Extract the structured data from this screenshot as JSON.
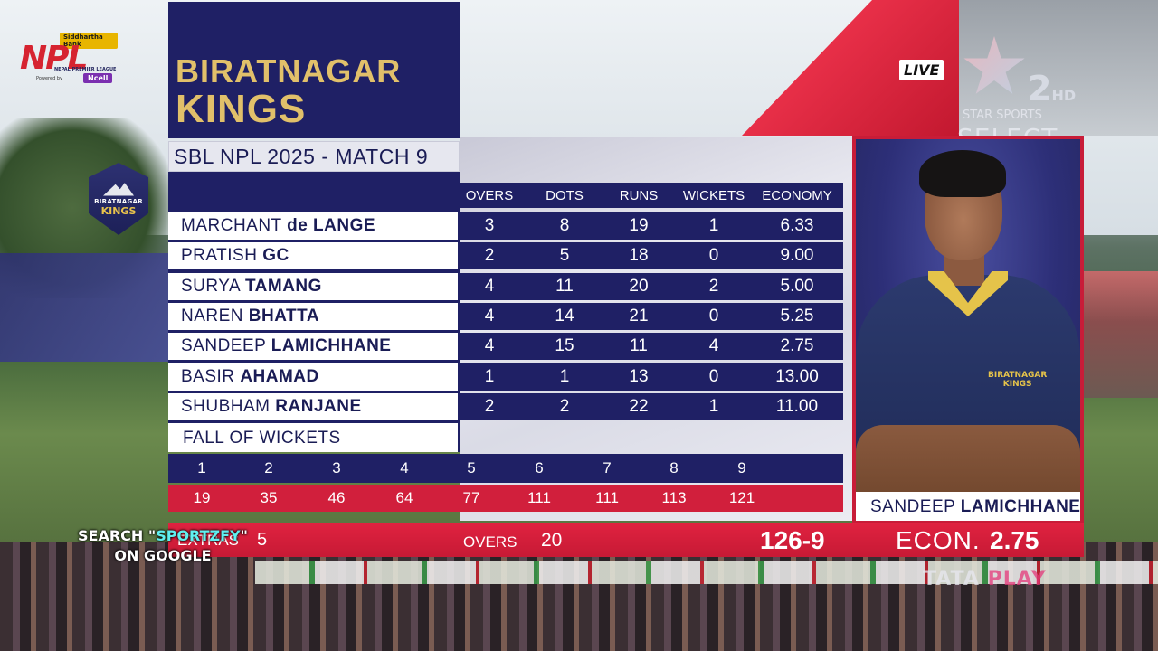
{
  "npl_logo": {
    "sponsor": "Siddhartha Bank",
    "mark": "NPL",
    "subtitle": "NEPAL PREMIER LEAGUE",
    "powered_by": "Powered by",
    "powered_brand": "Ncell"
  },
  "team_shield": {
    "line1": "BIRATNAGAR",
    "line2": "KINGS"
  },
  "broadcaster": {
    "live": "LIVE",
    "channel": "2",
    "hd": "HD",
    "star_sports": "STAR SPORTS",
    "select": "SELECT",
    "tata_play": "TATA",
    "tata_play_2": "PLAY"
  },
  "scorecard": {
    "team_line1": "BIRATNAGAR",
    "team_line2": "KINGS",
    "match_title": "SBL NPL 2025 - MATCH 9",
    "columns": [
      "OVERS",
      "DOTS",
      "RUNS",
      "WICKETS",
      "ECONOMY"
    ],
    "bowlers": [
      {
        "first": "MARCHANT",
        "last": "de LANGE",
        "overs": "3",
        "dots": "8",
        "runs": "19",
        "wickets": "1",
        "economy": "6.33"
      },
      {
        "first": "PRATISH",
        "last": "GC",
        "overs": "2",
        "dots": "5",
        "runs": "18",
        "wickets": "0",
        "economy": "9.00"
      },
      {
        "first": "SURYA",
        "last": "TAMANG",
        "overs": "4",
        "dots": "11",
        "runs": "20",
        "wickets": "2",
        "economy": "5.00"
      },
      {
        "first": "NAREN",
        "last": "BHATTA",
        "overs": "4",
        "dots": "14",
        "runs": "21",
        "wickets": "0",
        "economy": "5.25"
      },
      {
        "first": "SANDEEP",
        "last": "LAMICHHANE",
        "overs": "4",
        "dots": "15",
        "runs": "11",
        "wickets": "4",
        "economy": "2.75"
      },
      {
        "first": "BASIR",
        "last": "AHAMAD",
        "overs": "1",
        "dots": "1",
        "runs": "13",
        "wickets": "0",
        "economy": "13.00"
      },
      {
        "first": "SHUBHAM",
        "last": "RANJANE",
        "overs": "2",
        "dots": "2",
        "runs": "22",
        "wickets": "1",
        "economy": "11.00"
      }
    ],
    "fall_of_wickets_label": "FALL OF WICKETS",
    "fow_numbers": [
      "1",
      "2",
      "3",
      "4",
      "5",
      "6",
      "7",
      "8",
      "9"
    ],
    "fow_scores": [
      "19",
      "35",
      "46",
      "64",
      "77",
      "111",
      "111",
      "113",
      "121"
    ],
    "extras_label": "EXTRAS",
    "extras_value": "5",
    "overs_label": "OVERS",
    "overs_value": "20",
    "total": "126-9",
    "econ_label": "ECON.",
    "econ_value": "2.75"
  },
  "player": {
    "first": "SANDEEP",
    "last": "LAMICHHANE",
    "jersey_text_1": "BIRATNAGAR",
    "jersey_text_2": "KINGS"
  },
  "overlay_ad": {
    "line1_pre": "SEARCH \"",
    "line1_hl": "SPORTZFY",
    "line1_post": "\"",
    "line2": "ON GOOGLE"
  },
  "colors": {
    "navy": "#1f2065",
    "gold": "#e1c06a",
    "red": "#d11f3c"
  }
}
